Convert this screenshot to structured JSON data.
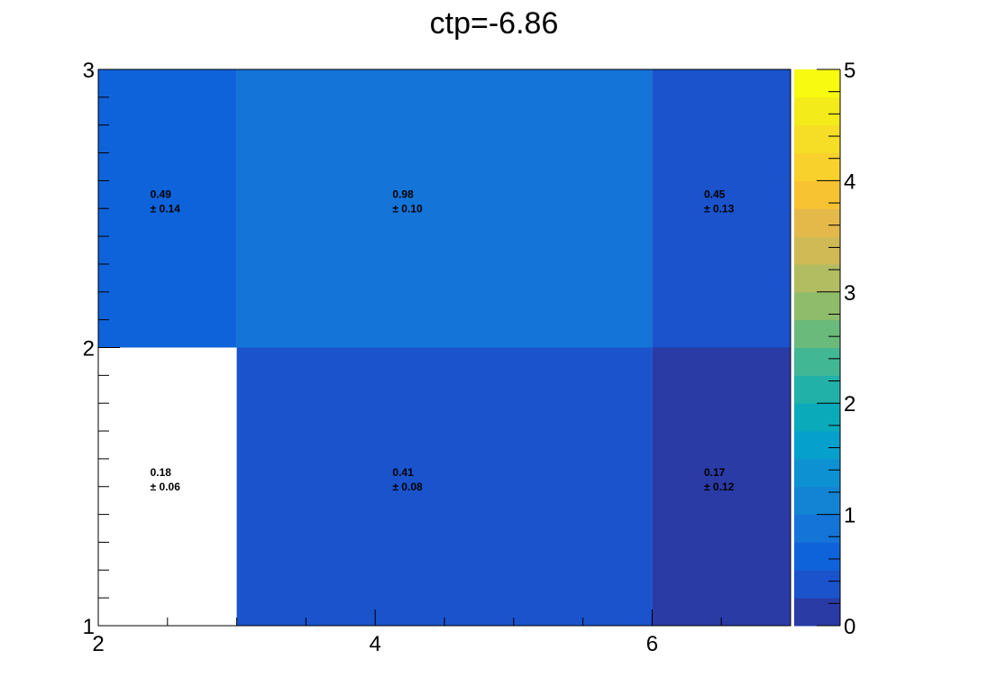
{
  "chart_data": {
    "type": "heatmap",
    "title": "ctp=-6.86",
    "xlabel": "",
    "ylabel": "",
    "x_edges": [
      2,
      3,
      6,
      7
    ],
    "y_edges": [
      1,
      2,
      3
    ],
    "xlim": [
      2,
      7
    ],
    "ylim": [
      1,
      3
    ],
    "zlim": [
      0,
      5
    ],
    "x_ticks": [
      2,
      4,
      6
    ],
    "y_ticks": [
      1,
      2,
      3
    ],
    "z_ticks": [
      0,
      1,
      2,
      3,
      4,
      5
    ],
    "cells": [
      {
        "x0": 2,
        "x1": 3,
        "y0": 1,
        "y1": 2,
        "value": 0.18,
        "error": 0.06,
        "label": "0.18",
        "error_label": "± 0.06",
        "color": "#ffffff"
      },
      {
        "x0": 3,
        "x1": 6,
        "y0": 1,
        "y1": 2,
        "value": 0.41,
        "error": 0.08,
        "label": "0.41",
        "error_label": "± 0.08",
        "color": "#1a53cc"
      },
      {
        "x0": 6,
        "x1": 7,
        "y0": 1,
        "y1": 2,
        "value": 0.17,
        "error": 0.12,
        "label": "0.17",
        "error_label": "± 0.12",
        "color": "#2a3ba6"
      },
      {
        "x0": 2,
        "x1": 3,
        "y0": 2,
        "y1": 3,
        "value": 0.49,
        "error": 0.14,
        "label": "0.49",
        "error_label": "± 0.14",
        "color": "#0f63da"
      },
      {
        "x0": 3,
        "x1": 6,
        "y0": 2,
        "y1": 3,
        "value": 0.98,
        "error": 0.1,
        "label": "0.98",
        "error_label": "± 0.10",
        "color": "#1474d8"
      },
      {
        "x0": 6,
        "x1": 7,
        "y0": 2,
        "y1": 3,
        "value": 0.45,
        "error": 0.13,
        "label": "0.45",
        "error_label": "± 0.13",
        "color": "#1a53cc"
      }
    ],
    "palette": [
      "#2a3ba6",
      "#1a53cc",
      "#0f63da",
      "#1474d8",
      "#1384d4",
      "#0e91d3",
      "#06a0cd",
      "#0aaabb",
      "#22b1a9",
      "#42b794",
      "#6aba7b",
      "#8fbc6b",
      "#b2bc61",
      "#cfba56",
      "#e4b949",
      "#f7c332",
      "#f8d12d",
      "#f6dd26",
      "#f4eb1b",
      "#f8fa10"
    ],
    "grid": false,
    "legend": "none"
  }
}
